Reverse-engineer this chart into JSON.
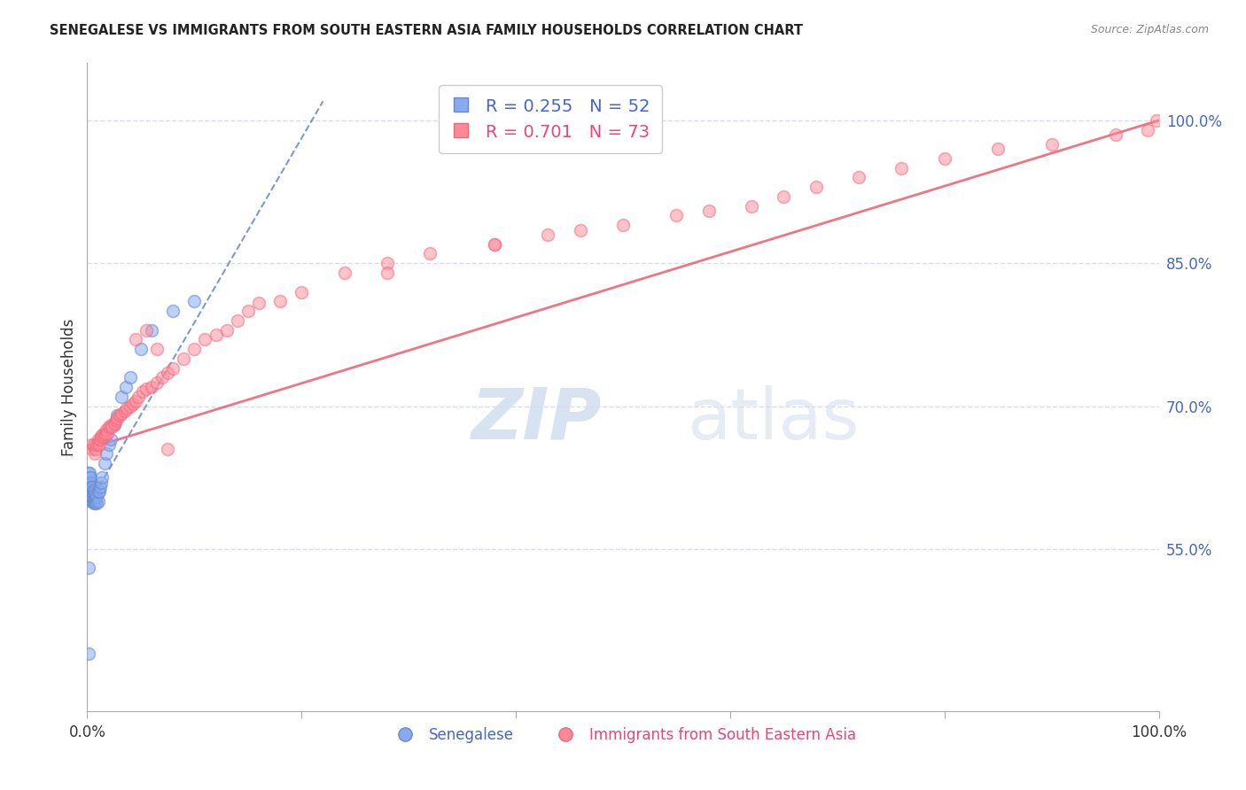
{
  "title": "SENEGALESE VS IMMIGRANTS FROM SOUTH EASTERN ASIA FAMILY HOUSEHOLDS CORRELATION CHART",
  "source": "Source: ZipAtlas.com",
  "ylabel": "Family Households",
  "xmin": 0.0,
  "xmax": 1.0,
  "ymin": 0.38,
  "ymax": 1.06,
  "right_yticks": [
    0.55,
    0.7,
    0.85,
    1.0
  ],
  "right_yticklabels": [
    "55.0%",
    "70.0%",
    "85.0%",
    "100.0%"
  ],
  "xtick_positions": [
    0.0,
    0.2,
    0.4,
    0.6,
    0.8,
    1.0
  ],
  "xtick_labels": [
    "0.0%",
    "",
    "",
    "",
    "",
    "100.0%"
  ],
  "background_color": "#ffffff",
  "grid_color": "#d8dce8",
  "blue_color": "#88aaee",
  "pink_color": "#ff8899",
  "blue_edge_color": "#6688cc",
  "pink_edge_color": "#ee6677",
  "blue_R": 0.255,
  "blue_N": 52,
  "pink_R": 0.701,
  "pink_N": 73,
  "blue_label": "Senegalese",
  "pink_label": "Immigrants from South Eastern Asia",
  "blue_scatter_x": [
    0.001,
    0.001,
    0.002,
    0.002,
    0.002,
    0.002,
    0.002,
    0.003,
    0.003,
    0.003,
    0.003,
    0.003,
    0.004,
    0.004,
    0.004,
    0.004,
    0.005,
    0.005,
    0.005,
    0.005,
    0.006,
    0.006,
    0.006,
    0.006,
    0.007,
    0.007,
    0.007,
    0.008,
    0.008,
    0.009,
    0.009,
    0.01,
    0.01,
    0.011,
    0.012,
    0.013,
    0.014,
    0.016,
    0.018,
    0.02,
    0.022,
    0.025,
    0.028,
    0.032,
    0.036,
    0.04,
    0.05,
    0.06,
    0.08,
    0.1,
    0.001,
    0.001
  ],
  "blue_scatter_y": [
    0.62,
    0.63,
    0.61,
    0.615,
    0.62,
    0.625,
    0.63,
    0.605,
    0.61,
    0.615,
    0.62,
    0.625,
    0.6,
    0.605,
    0.61,
    0.615,
    0.6,
    0.605,
    0.61,
    0.615,
    0.598,
    0.602,
    0.608,
    0.612,
    0.598,
    0.603,
    0.61,
    0.6,
    0.608,
    0.598,
    0.605,
    0.6,
    0.61,
    0.61,
    0.615,
    0.62,
    0.625,
    0.64,
    0.65,
    0.66,
    0.665,
    0.68,
    0.69,
    0.71,
    0.72,
    0.73,
    0.76,
    0.78,
    0.8,
    0.81,
    0.44,
    0.53
  ],
  "pink_scatter_x": [
    0.004,
    0.005,
    0.006,
    0.007,
    0.008,
    0.009,
    0.01,
    0.011,
    0.012,
    0.013,
    0.014,
    0.015,
    0.016,
    0.017,
    0.018,
    0.019,
    0.02,
    0.022,
    0.023,
    0.025,
    0.027,
    0.028,
    0.03,
    0.032,
    0.035,
    0.037,
    0.04,
    0.043,
    0.045,
    0.048,
    0.052,
    0.055,
    0.06,
    0.065,
    0.07,
    0.075,
    0.08,
    0.09,
    0.1,
    0.11,
    0.12,
    0.13,
    0.14,
    0.15,
    0.16,
    0.2,
    0.24,
    0.28,
    0.32,
    0.38,
    0.43,
    0.46,
    0.5,
    0.55,
    0.58,
    0.62,
    0.65,
    0.68,
    0.72,
    0.76,
    0.8,
    0.85,
    0.9,
    0.96,
    0.99,
    0.998,
    0.18,
    0.28,
    0.38,
    0.045,
    0.055,
    0.065,
    0.075
  ],
  "pink_scatter_y": [
    0.66,
    0.655,
    0.66,
    0.65,
    0.655,
    0.66,
    0.665,
    0.66,
    0.665,
    0.668,
    0.67,
    0.668,
    0.672,
    0.67,
    0.675,
    0.672,
    0.678,
    0.68,
    0.678,
    0.682,
    0.685,
    0.688,
    0.69,
    0.692,
    0.695,
    0.698,
    0.7,
    0.702,
    0.705,
    0.71,
    0.715,
    0.718,
    0.72,
    0.725,
    0.73,
    0.735,
    0.74,
    0.75,
    0.76,
    0.77,
    0.775,
    0.78,
    0.79,
    0.8,
    0.808,
    0.82,
    0.84,
    0.85,
    0.86,
    0.87,
    0.88,
    0.885,
    0.89,
    0.9,
    0.905,
    0.91,
    0.92,
    0.93,
    0.94,
    0.95,
    0.96,
    0.97,
    0.975,
    0.985,
    0.99,
    1.0,
    0.81,
    0.84,
    0.87,
    0.77,
    0.78,
    0.76,
    0.655
  ],
  "blue_trend_x": [
    0.002,
    0.22
  ],
  "blue_trend_y": [
    0.598,
    1.02
  ],
  "pink_trend_x": [
    0.0,
    1.0
  ],
  "pink_trend_y": [
    0.655,
    1.0
  ]
}
